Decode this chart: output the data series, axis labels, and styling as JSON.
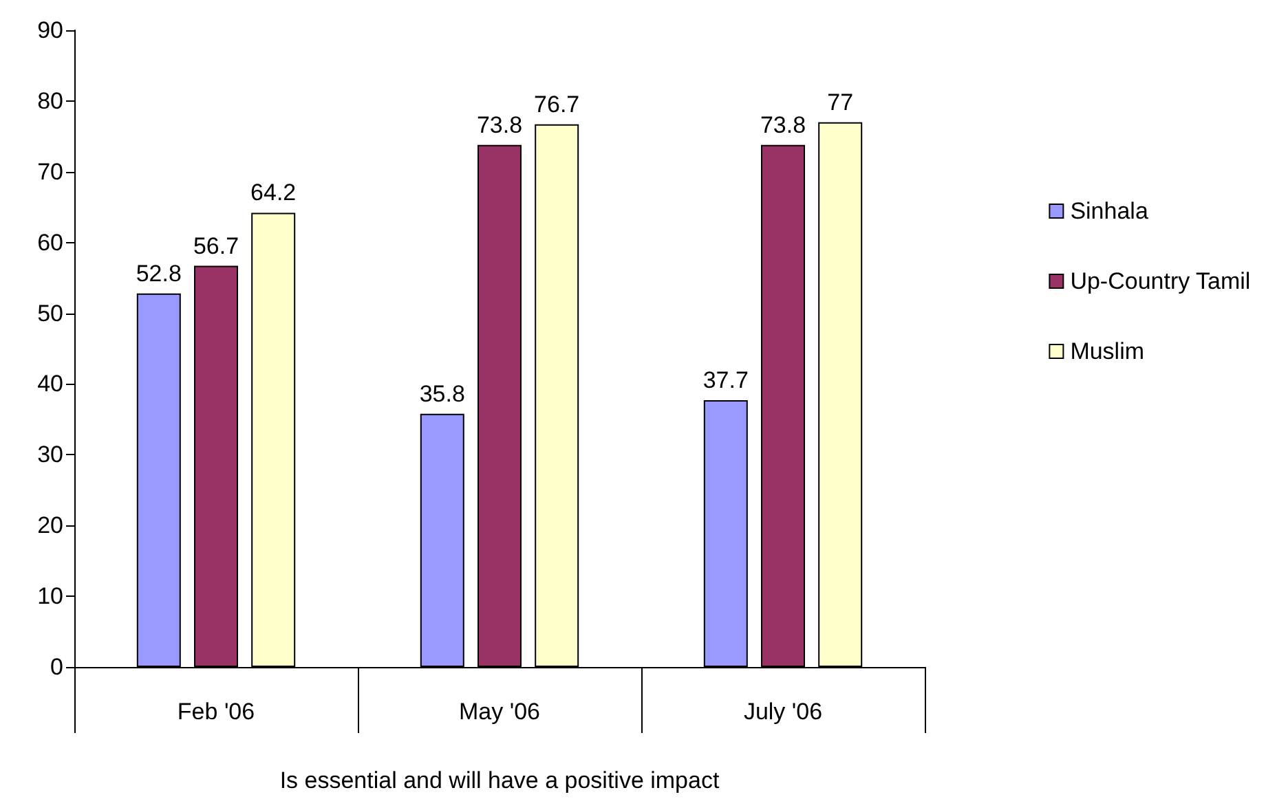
{
  "chart_data": {
    "type": "bar",
    "xlabel": "Is essential and will have a positive impact",
    "categories": [
      "Feb '06",
      "May '06",
      "July '06"
    ],
    "series": [
      {
        "name": "Sinhala",
        "color": "#9999ff",
        "values": [
          52.8,
          35.8,
          37.7
        ]
      },
      {
        "name": "Up-Country Tamil",
        "color": "#993366",
        "values": [
          56.7,
          73.8,
          73.8
        ]
      },
      {
        "name": "Muslim",
        "color": "#ffffcc",
        "values": [
          64.2,
          76.7,
          77
        ]
      }
    ],
    "ylim": [
      0,
      90
    ],
    "yticks": [
      0,
      10,
      20,
      30,
      40,
      50,
      60,
      70,
      80,
      90
    ],
    "grid": false,
    "legend": "right",
    "data_labels": true
  }
}
